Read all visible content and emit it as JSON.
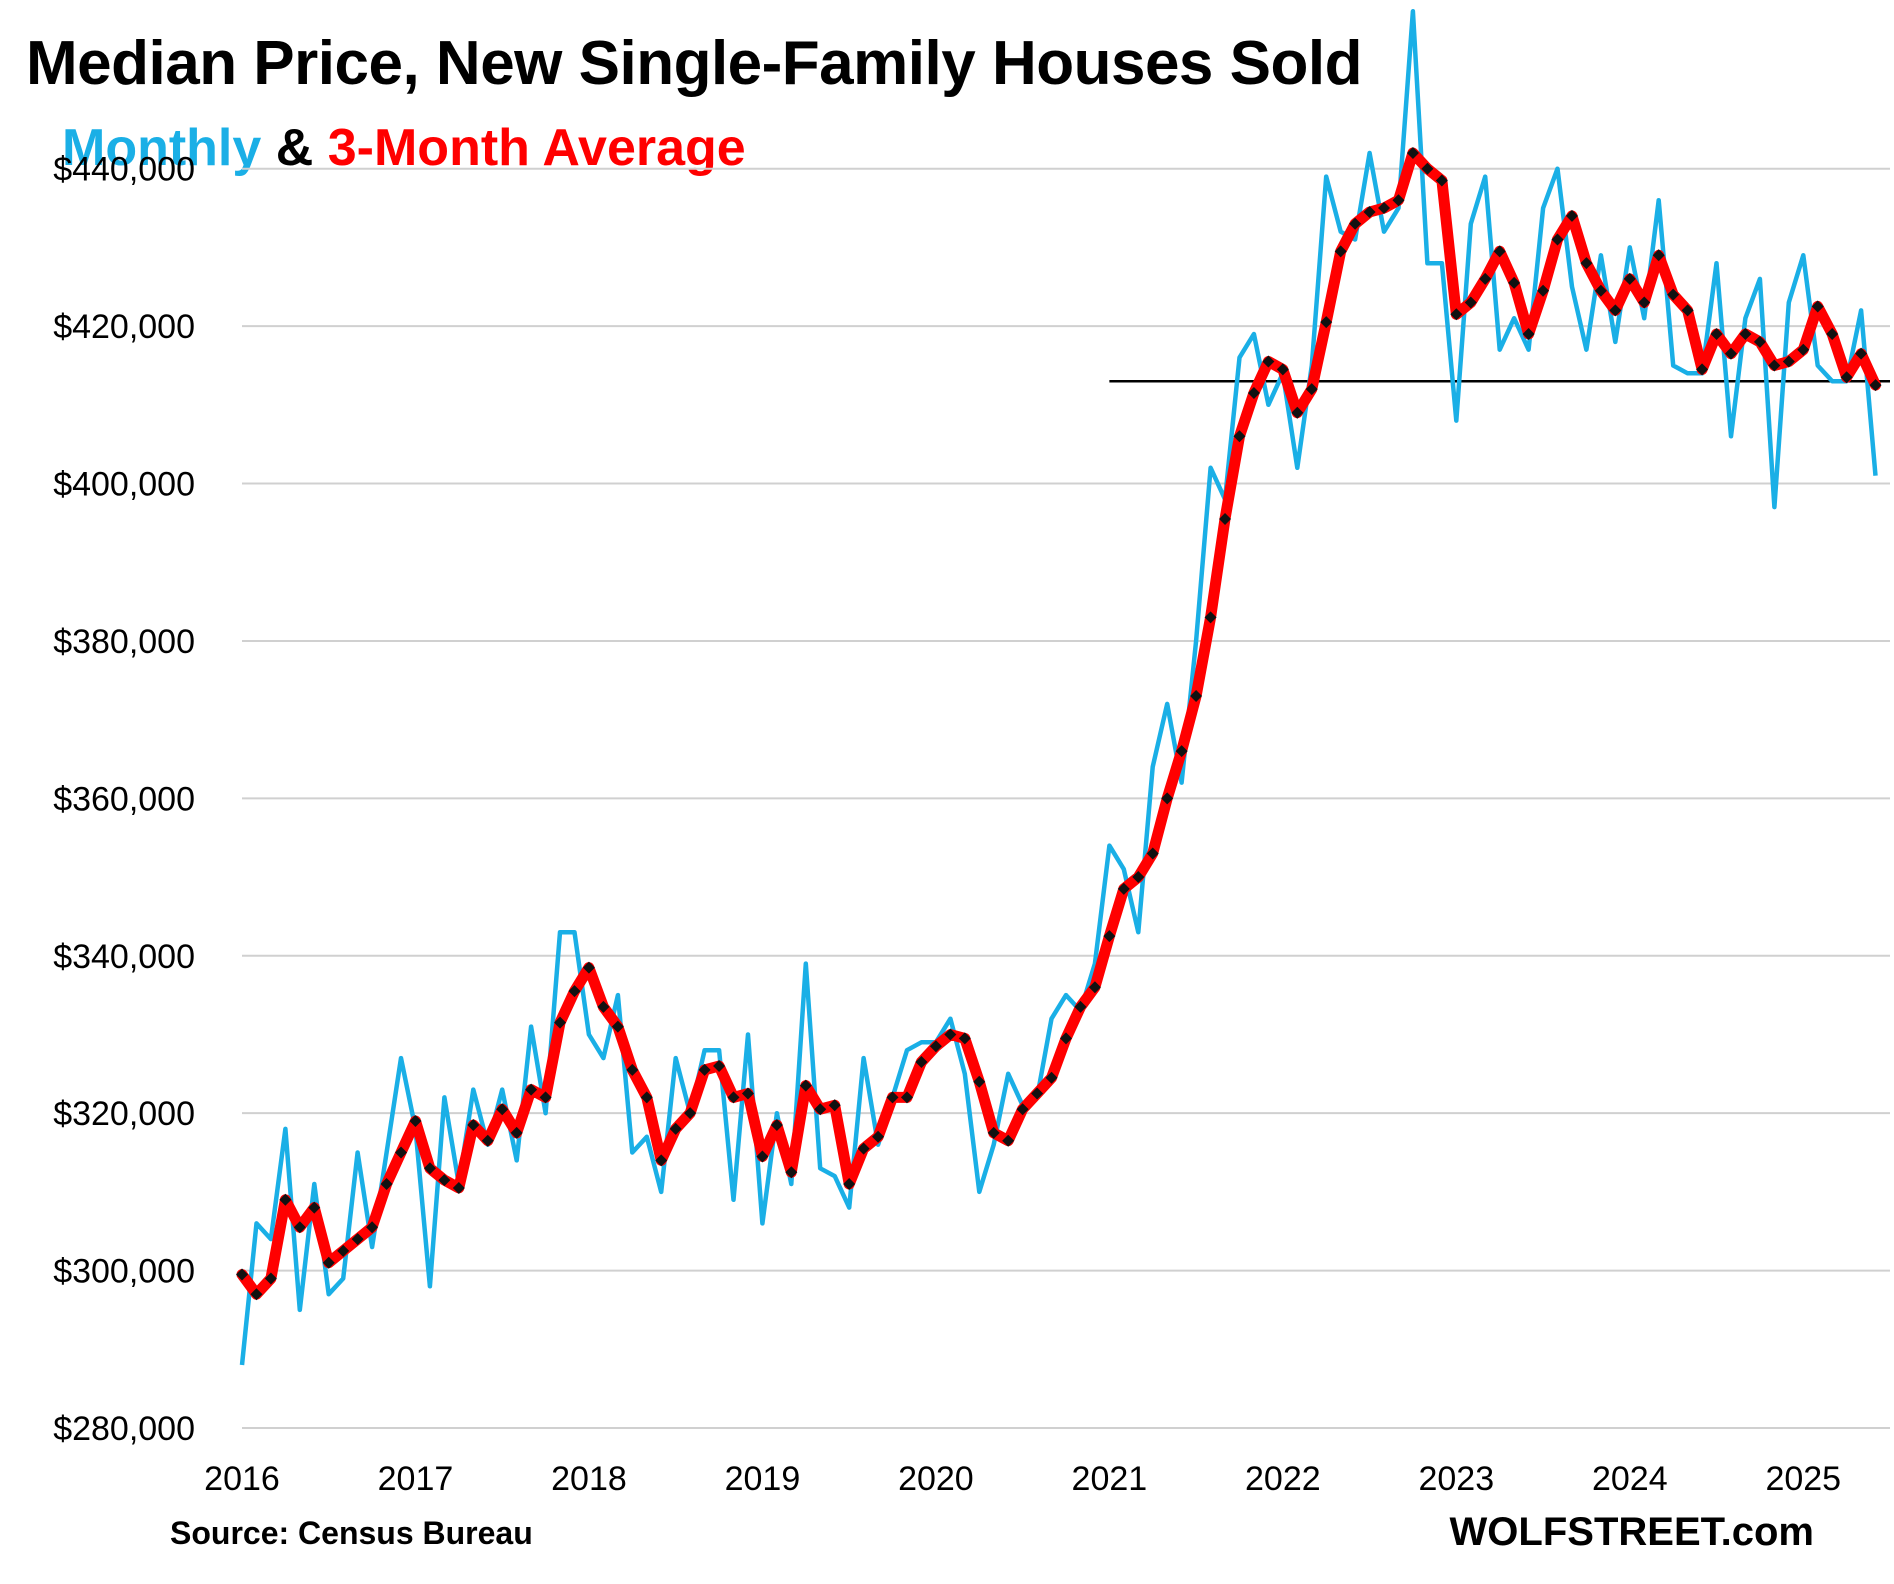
{
  "header": {
    "title": "Median Price, New Single-Family Houses Sold",
    "subtitle_monthly": "Monthly",
    "subtitle_amp": " & ",
    "subtitle_avg": "3-Month Average"
  },
  "footer": {
    "source": "Source: Census Bureau",
    "brand": "WOLFSTREET.com"
  },
  "colors": {
    "monthly": "#1AAFE6",
    "average": "#FF0000",
    "markers": "#111111",
    "grid": "#D0D0D0",
    "reference_line": "#000000",
    "text": "#000000"
  },
  "chart_data": {
    "type": "line",
    "title": "Median Price, New Single-Family Houses Sold",
    "xlabel": "",
    "ylabel": "",
    "ylim": [
      280000,
      450000
    ],
    "xlim": [
      2016.0,
      2025.5
    ],
    "grid": "horizontal",
    "x_tick_labels": [
      "2016",
      "2017",
      "2018",
      "2019",
      "2020",
      "2021",
      "2022",
      "2023",
      "2024",
      "2025"
    ],
    "x_ticks": [
      2016,
      2017,
      2018,
      2019,
      2020,
      2021,
      2022,
      2023,
      2024,
      2025
    ],
    "y_tick_labels": [
      "$280,000",
      "$300,000",
      "$320,000",
      "$340,000",
      "$360,000",
      "$380,000",
      "$400,000",
      "$420,000",
      "$440,000"
    ],
    "y_ticks": [
      280000,
      300000,
      320000,
      340000,
      360000,
      380000,
      400000,
      420000,
      440000
    ],
    "reference_line": {
      "value": 413000,
      "x_start": 2021.0,
      "x_end": 2025.5
    },
    "start": "2016-01",
    "series": [
      {
        "name": "Monthly",
        "values": [
          288000,
          306000,
          304000,
          318000,
          295000,
          311000,
          297000,
          299000,
          315000,
          303000,
          315000,
          327000,
          318000,
          298000,
          322000,
          311000,
          323000,
          316000,
          323000,
          314000,
          331000,
          320000,
          343000,
          343000,
          330000,
          327000,
          335000,
          315000,
          317000,
          310000,
          327000,
          320000,
          328000,
          328000,
          309000,
          330000,
          306000,
          320000,
          311000,
          339000,
          313000,
          312000,
          308000,
          327000,
          316000,
          322000,
          328000,
          329000,
          329000,
          332000,
          325000,
          310000,
          316000,
          325000,
          321000,
          322000,
          332000,
          335000,
          333000,
          339000,
          354000,
          351000,
          343000,
          364000,
          372000,
          362000,
          380000,
          402000,
          398000,
          416000,
          419000,
          410000,
          414000,
          402000,
          415000,
          439000,
          432000,
          431000,
          442000,
          432000,
          435000,
          460000,
          428000,
          428000,
          408000,
          433000,
          439000,
          417000,
          421000,
          417000,
          435000,
          440000,
          425000,
          417000,
          429000,
          418000,
          430000,
          421000,
          436000,
          415000,
          414000,
          414000,
          428000,
          406000,
          421000,
          426000,
          397000,
          423000,
          429000,
          415000,
          413000,
          413000,
          422000,
          401000
        ]
      },
      {
        "name": "3-Month Average",
        "values": [
          299500,
          297000,
          299000,
          309000,
          305500,
          308000,
          301000,
          302500,
          304000,
          305500,
          311000,
          315000,
          319000,
          313000,
          311500,
          310500,
          318500,
          316500,
          320500,
          317500,
          323000,
          322000,
          331500,
          335500,
          338500,
          333500,
          331000,
          325500,
          322000,
          314000,
          318000,
          320000,
          325500,
          326000,
          322000,
          322500,
          314500,
          318500,
          312500,
          323500,
          320500,
          321000,
          311000,
          315500,
          317000,
          322000,
          322000,
          326500,
          328500,
          330000,
          329500,
          324000,
          317500,
          316500,
          320500,
          322500,
          324500,
          329500,
          333500,
          336000,
          342500,
          348500,
          350000,
          353000,
          360000,
          366000,
          373000,
          383000,
          395500,
          406000,
          411500,
          415500,
          414500,
          409000,
          412000,
          420500,
          429500,
          433000,
          434500,
          435000,
          436000,
          442000,
          440000,
          438500,
          421500,
          423000,
          426000,
          429500,
          425500,
          419000,
          424500,
          431000,
          434000,
          428000,
          424500,
          422000,
          426000,
          423000,
          429000,
          424000,
          422000,
          414500,
          419000,
          416500,
          419000,
          418000,
          415000,
          415500,
          417000,
          422500,
          419000,
          413500,
          416500,
          412500
        ]
      }
    ]
  }
}
